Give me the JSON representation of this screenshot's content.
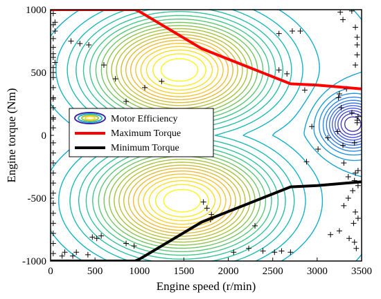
{
  "chart_data": {
    "type": "contour",
    "xlabel": "Engine speed (r/min)",
    "ylabel": "Engine torque (Nm)",
    "xlim": [
      0,
      3500
    ],
    "ylim": [
      -1000,
      1000
    ],
    "xticks": [
      0,
      500,
      1000,
      1500,
      2000,
      2500,
      3000,
      3500
    ],
    "yticks": [
      -1000,
      -500,
      0,
      500,
      1000
    ],
    "grid": false,
    "legend_position": "center-left",
    "series": [
      {
        "name": "Motor Efficiency",
        "kind": "contour",
        "colormap": "parula",
        "levels": 30,
        "peaks": [
          {
            "x": 1450,
            "y": 520,
            "sx": 650,
            "sy": 280
          },
          {
            "x": 1480,
            "y": -520,
            "sx": 650,
            "sy": 280
          }
        ]
      },
      {
        "name": "Maximum Torque",
        "color": "#ff0000",
        "x": [
          0,
          950,
          1000,
          1700,
          2700,
          3000,
          3500
        ],
        "y": [
          1000,
          1000,
          985,
          690,
          410,
          400,
          370
        ]
      },
      {
        "name": "Minimum Torque",
        "color": "#000000",
        "x": [
          0,
          950,
          1000,
          1700,
          2700,
          3000,
          3500
        ],
        "y": [
          -1000,
          -1000,
          -985,
          -690,
          -410,
          -400,
          -370
        ]
      },
      {
        "name": "",
        "kind": "scatter",
        "marker": "+",
        "x": [
          30,
          50,
          230,
          330,
          430,
          600,
          730,
          850,
          1060,
          1250,
          30,
          50,
          30,
          30,
          30,
          2570,
          2720,
          2810,
          2570,
          2660,
          3260,
          3390,
          3290,
          3430,
          3450,
          3450,
          3450,
          3430,
          3330,
          3250,
          2860,
          3240,
          3270,
          3390,
          3460,
          3450,
          3450,
          2940,
          3230,
          3120,
          3420,
          3290,
          3010,
          2880,
          3300,
          3460,
          3430,
          3350,
          3420,
          3460,
          3400,
          3350,
          3300,
          3430,
          3460,
          3410,
          3250,
          3150,
          3360,
          3420,
          3440,
          30,
          50,
          30,
          30,
          30,
          30,
          30,
          30,
          30,
          30,
          30,
          30,
          30,
          30,
          30,
          30,
          30,
          30,
          30,
          30,
          30,
          30,
          30,
          30,
          130,
          160,
          250,
          290,
          420,
          470,
          520,
          570,
          850,
          940,
          1720,
          1760,
          1810,
          1800,
          2060,
          2230,
          2300,
          2390,
          2520,
          2600,
          2700
        ],
        "y": [
          970,
          900,
          750,
          730,
          720,
          560,
          450,
          270,
          380,
          430,
          650,
          580,
          500,
          290,
          130,
          810,
          830,
          830,
          520,
          490,
          980,
          990,
          920,
          860,
          780,
          720,
          640,
          560,
          370,
          330,
          360,
          300,
          220,
          180,
          150,
          120,
          100,
          70,
          30,
          -20,
          -60,
          -80,
          -110,
          -210,
          -220,
          -280,
          -300,
          -330,
          -360,
          -400,
          -440,
          -500,
          -560,
          -610,
          -660,
          -700,
          -760,
          -790,
          -820,
          -850,
          -900,
          880,
          830,
          770,
          700,
          620,
          540,
          460,
          380,
          300,
          220,
          140,
          60,
          -60,
          -140,
          -220,
          -300,
          -380,
          -460,
          -540,
          -620,
          -700,
          -780,
          -860,
          -940,
          -960,
          -930,
          -960,
          -930,
          -950,
          -810,
          -820,
          -800,
          -860,
          -880,
          -530,
          -580,
          -630,
          -670,
          -930,
          -900,
          -720,
          -920,
          -930,
          -920,
          -930
        ]
      }
    ]
  }
}
